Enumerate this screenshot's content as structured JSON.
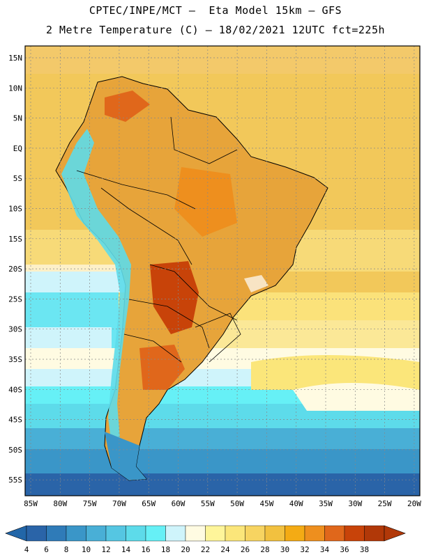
{
  "header": {
    "line1": "CPTEC/INPE/MCT –  Eta Model 15km – GFS",
    "line2": "2 Metre Temperature (C) – 18/02/2021 12UTC fct=225h"
  },
  "map": {
    "lat_labels": [
      "15N",
      "10N",
      "5N",
      "EQ",
      "5S",
      "10S",
      "15S",
      "20S",
      "25S",
      "30S",
      "35S",
      "40S",
      "45S",
      "50S",
      "55S"
    ],
    "lon_labels": [
      "85W",
      "80W",
      "75W",
      "70W",
      "65W",
      "60W",
      "55W",
      "50W",
      "45W",
      "40W",
      "35W",
      "30W",
      "25W",
      "20W"
    ]
  },
  "colorbar": {
    "labels": [
      "4",
      "6",
      "8",
      "10",
      "12",
      "14",
      "16",
      "18",
      "20",
      "22",
      "24",
      "26",
      "28",
      "30",
      "32",
      "34",
      "36",
      "38"
    ],
    "colors": [
      "#2a64a8",
      "#2f7bb8",
      "#3a96c8",
      "#49afd6",
      "#55c6e2",
      "#5ddbea",
      "#66f0f6",
      "#cff4fb",
      "#fffbe2",
      "#fef59a",
      "#fbe67a",
      "#f7d461",
      "#f2c13f",
      "#f4ab14",
      "#ee8f1e",
      "#e0671b",
      "#c84309",
      "#b13808"
    ],
    "left_color": "#2266a8",
    "right_color": "#b13808"
  }
}
